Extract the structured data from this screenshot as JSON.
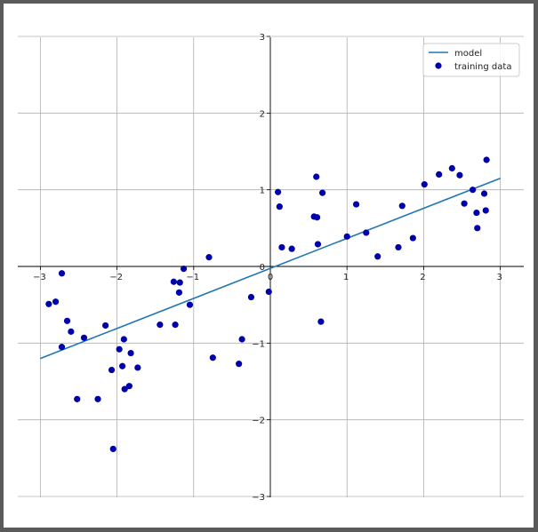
{
  "chart_data": {
    "type": "scatter",
    "title": "",
    "xlabel": "",
    "ylabel": "",
    "xlim": [
      -3.3,
      3.3
    ],
    "ylim": [
      -3,
      3
    ],
    "grid": true,
    "legend_position": "top-right",
    "x_ticks": [
      -3,
      -2,
      -1,
      0,
      1,
      2,
      3
    ],
    "y_ticks": [
      -3,
      -2,
      -1,
      0,
      1,
      2,
      3
    ],
    "x_tick_labels": [
      "−3",
      "−2",
      "−1",
      "0",
      "1",
      "2",
      "3"
    ],
    "y_tick_labels": [
      "−3",
      "−2",
      "−1",
      "0",
      "1",
      "2",
      "3"
    ],
    "series": [
      {
        "name": "model",
        "kind": "line",
        "color": "#1f77b4",
        "x": [
          -3,
          3
        ],
        "y": [
          -1.2,
          1.15
        ]
      },
      {
        "name": "training data",
        "kind": "scatter",
        "color": "#0000aa",
        "x": [
          -2.89,
          -2.8,
          -2.72,
          -2.72,
          -2.65,
          -2.6,
          -2.52,
          -2.43,
          -2.25,
          -2.15,
          -2.07,
          -2.05,
          -1.97,
          -1.93,
          -1.91,
          -1.9,
          -1.84,
          -1.82,
          -1.73,
          -1.44,
          -1.26,
          -1.24,
          -1.19,
          -1.18,
          -1.13,
          -1.05,
          -0.8,
          -0.75,
          -0.41,
          -0.37,
          -0.25,
          -0.02,
          0.1,
          0.12,
          0.15,
          0.28,
          0.57,
          0.6,
          0.61,
          0.62,
          0.66,
          0.68,
          1.0,
          1.12,
          1.25,
          1.4,
          1.67,
          1.72,
          1.86,
          2.01,
          2.2,
          2.37,
          2.47,
          2.53,
          2.64,
          2.69,
          2.7,
          2.79,
          2.81,
          2.82
        ],
        "y": [
          -0.49,
          -0.46,
          -1.05,
          -0.09,
          -0.71,
          -0.85,
          -1.73,
          -0.93,
          -1.73,
          -0.77,
          -1.35,
          -2.38,
          -1.08,
          -1.3,
          -0.95,
          -1.6,
          -1.56,
          -1.13,
          -1.32,
          -0.76,
          -0.2,
          -0.76,
          -0.34,
          -0.21,
          -0.03,
          -0.5,
          0.12,
          -1.19,
          -1.27,
          -0.95,
          -0.4,
          -0.33,
          0.97,
          0.78,
          0.25,
          0.23,
          0.65,
          1.17,
          0.64,
          0.29,
          -0.72,
          0.96,
          0.39,
          0.81,
          0.44,
          0.13,
          0.25,
          0.79,
          0.37,
          1.07,
          1.2,
          1.28,
          1.19,
          0.82,
          1.0,
          0.7,
          0.5,
          0.95,
          0.73,
          1.39
        ]
      }
    ]
  }
}
